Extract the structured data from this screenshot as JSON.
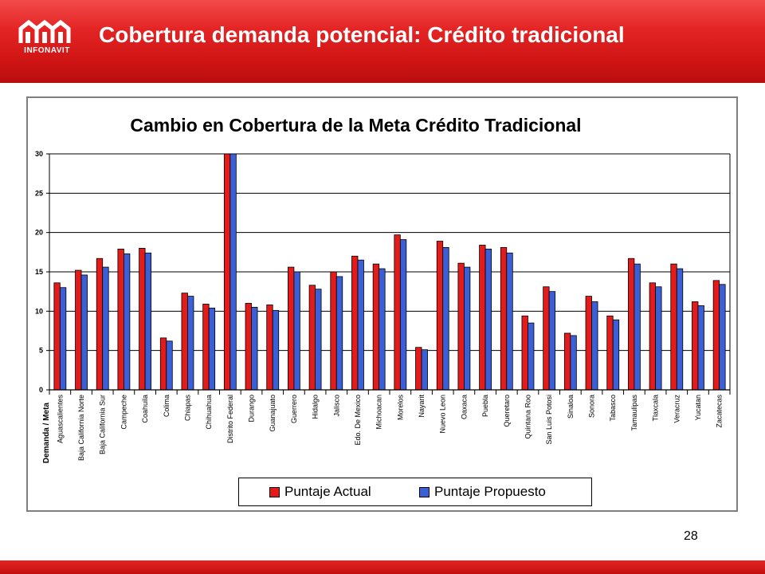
{
  "header": {
    "logo_text": "INFONAVIT",
    "title": "Cobertura demanda potencial: Crédito tradicional"
  },
  "page_number": "28",
  "colors": {
    "header_red": "#e42424",
    "series_actual": "#e31b1b",
    "series_propuesto": "#3a5fd6"
  },
  "chart_data": {
    "type": "bar",
    "title": "Cambio en Cobertura de la Meta Crédito Tradicional",
    "xlabel": "Demanda / Meta",
    "ylabel": "",
    "ylim": [
      0,
      30
    ],
    "yticks": [
      0,
      5,
      10,
      15,
      20,
      25,
      30
    ],
    "grid": true,
    "legend_position": "bottom",
    "categories": [
      "Aguascalientes",
      "Baja California Norte",
      "Baja California Sur",
      "Campeche",
      "Coahuila",
      "Colima",
      "Chiapas",
      "Chihuahua",
      "Distrito Federal",
      "Durango",
      "Guanajuato",
      "Guerrero",
      "Hidalgo",
      "Jalisco",
      "Edo. De Mexico",
      "Michoacan",
      "Morelos",
      "Nayarit",
      "Nuevo Leon",
      "Oaxaca",
      "Puebla",
      "Queretaro",
      "Quintana Roo",
      "San Luis Potosi",
      "Sinaloa",
      "Sonora",
      "Tabasco",
      "Tamaulipas",
      "Tlaxcala",
      "Veracruz",
      "Yucatan",
      "Zacatecas"
    ],
    "series": [
      {
        "name": "Puntaje Actual",
        "color": "#e31b1b",
        "values": [
          13.6,
          15.2,
          16.7,
          17.9,
          18.0,
          6.6,
          12.3,
          10.9,
          30,
          11.0,
          10.8,
          15.6,
          13.3,
          15.0,
          17.0,
          16.0,
          19.7,
          5.4,
          18.9,
          16.1,
          18.4,
          18.1,
          9.4,
          13.1,
          7.2,
          11.9,
          9.4,
          16.7,
          13.6,
          16.0,
          11.2,
          13.9
        ]
      },
      {
        "name": "Puntaje Propuesto",
        "color": "#3a5fd6",
        "values": [
          13.0,
          14.6,
          15.6,
          17.3,
          17.4,
          6.2,
          11.9,
          10.4,
          30,
          10.5,
          10.1,
          15.0,
          12.8,
          14.4,
          16.5,
          15.4,
          19.1,
          5.1,
          18.1,
          15.6,
          17.9,
          17.4,
          8.5,
          12.5,
          6.9,
          11.2,
          8.9,
          16.0,
          13.1,
          15.4,
          10.7,
          13.4
        ]
      }
    ]
  }
}
